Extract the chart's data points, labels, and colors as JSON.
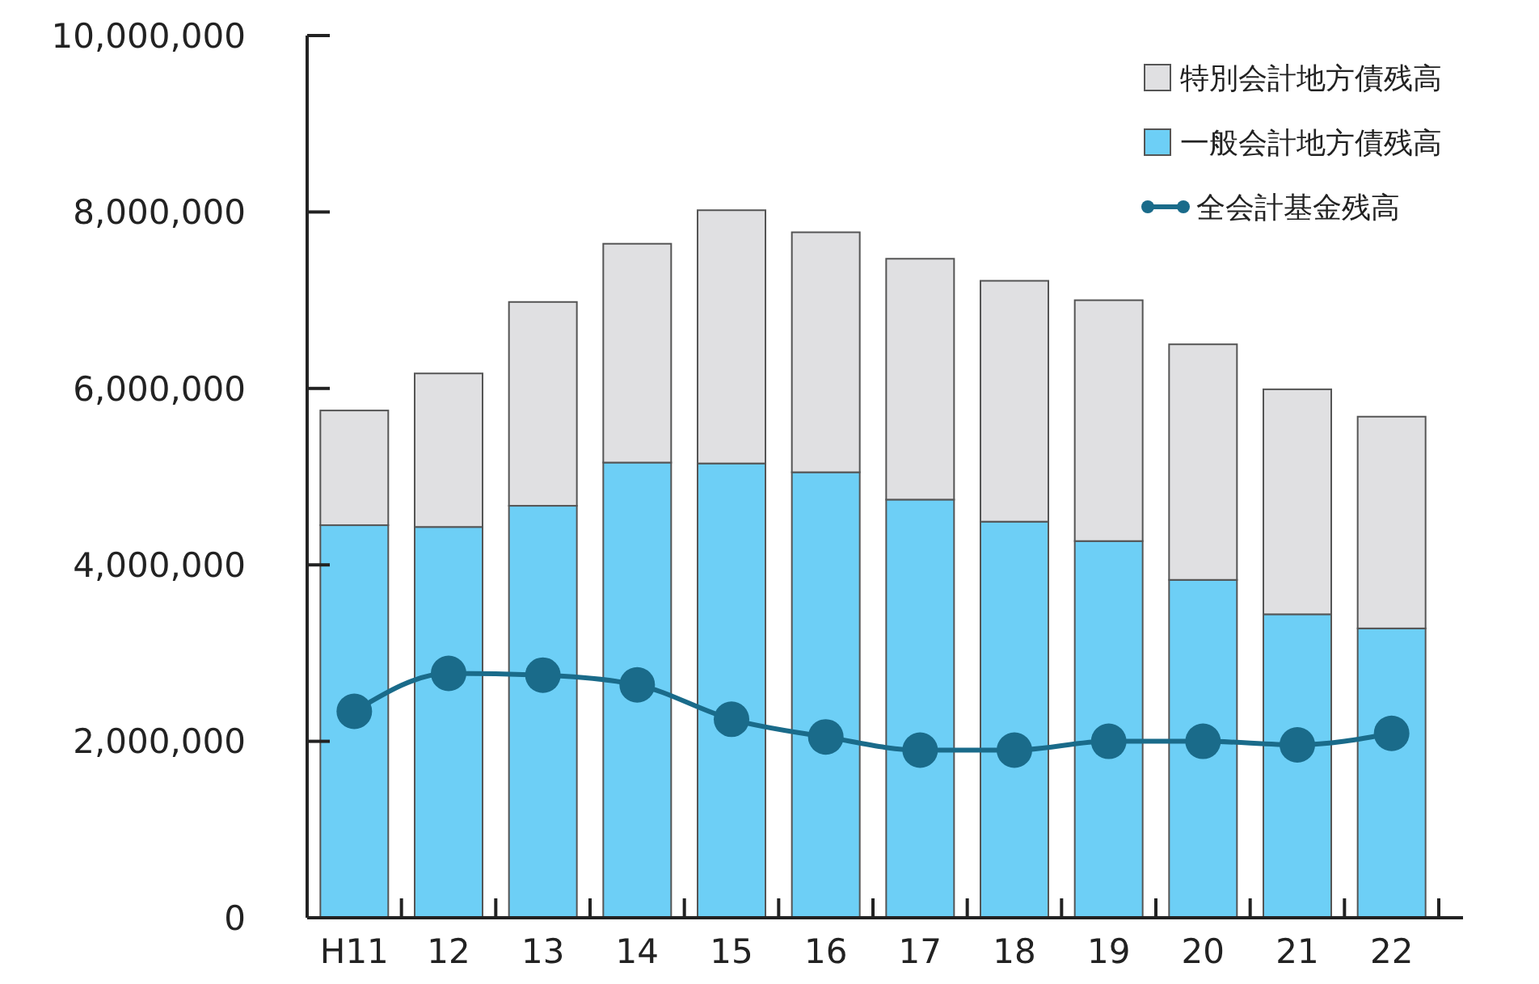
{
  "chart_data": {
    "type": "bar",
    "stacked": true,
    "categories": [
      "H11",
      "12",
      "13",
      "14",
      "15",
      "16",
      "17",
      "18",
      "19",
      "20",
      "21",
      "22"
    ],
    "series": [
      {
        "name": "一般会計地方債残高",
        "color": "#6dcff6",
        "values": [
          4450000,
          4430000,
          4670000,
          5160000,
          5150000,
          5050000,
          4740000,
          4490000,
          4270000,
          3830000,
          3440000,
          3280000
        ]
      },
      {
        "name": "特別会計地方債残高",
        "color": "#e0e0e2",
        "values": [
          1300000,
          1740000,
          2310000,
          2480000,
          2870000,
          2720000,
          2730000,
          2730000,
          2730000,
          2670000,
          2550000,
          2400000
        ]
      },
      {
        "name": "全会計基金残高",
        "type": "line",
        "color": "#1a6b8a",
        "marker": "circle",
        "values": [
          2340000,
          2770000,
          2750000,
          2640000,
          2250000,
          2050000,
          1900000,
          1900000,
          2000000,
          2000000,
          1960000,
          2090000
        ]
      }
    ],
    "ylim": [
      0,
      10000000
    ],
    "yticks": [
      {
        "value": 0,
        "label": "0"
      },
      {
        "value": 2000000,
        "label": "2,000,000"
      },
      {
        "value": 4000000,
        "label": "4,000,000"
      },
      {
        "value": 6000000,
        "label": "6,000,000"
      },
      {
        "value": 8000000,
        "label": "8,000,000"
      },
      {
        "value": 10000000,
        "label": "10,000,000"
      }
    ],
    "grid": false,
    "legend": "top right"
  }
}
